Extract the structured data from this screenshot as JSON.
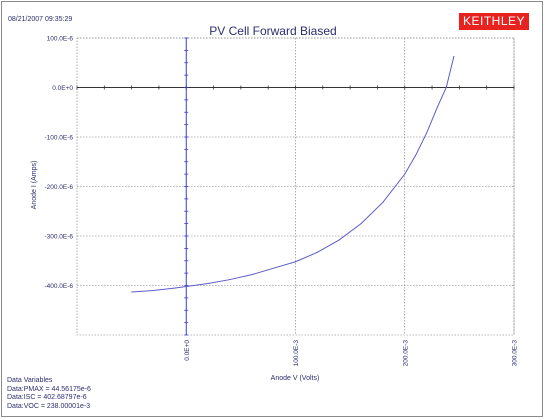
{
  "header": {
    "timestamp": "08/21/2007 09:35:29",
    "logo_text": "KEITHLEY",
    "logo_color": "#e8231f"
  },
  "chart_data": {
    "type": "line",
    "title": "PV Cell Forward Biased",
    "xlabel": "Anode V (Volts)",
    "ylabel": "Anode I (Amps)",
    "xlim": [
      -0.1,
      0.3
    ],
    "ylim": [
      -0.0005,
      0.0001
    ],
    "x_ticks": [
      0,
      0.1,
      0.2,
      0.3
    ],
    "x_tick_labels": [
      "0.0E+0",
      "100.0E-3",
      "200.0E-3",
      "300.0E-3"
    ],
    "y_ticks": [
      0.0001,
      0,
      -0.0001,
      -0.0002,
      -0.0003,
      -0.0004
    ],
    "y_tick_labels": [
      "100.0E-6",
      "0.0E+0",
      "-100.0E-6",
      "-200.0E-6",
      "-300.0E-6",
      "-400.0E-6"
    ],
    "grid": true,
    "line_color": "#5c5cc8",
    "series": [
      {
        "x": [
          -0.05,
          -0.03,
          -0.01,
          0.0,
          0.02,
          0.04,
          0.06,
          0.08,
          0.1,
          0.12,
          0.14,
          0.16,
          0.18,
          0.2,
          0.21,
          0.22,
          0.23,
          0.238,
          0.245
        ],
        "y": [
          -0.000413,
          -0.00041,
          -0.000405,
          -0.000402,
          -0.000396,
          -0.000388,
          -0.000378,
          -0.000365,
          -0.000352,
          -0.000333,
          -0.000308,
          -0.000275,
          -0.000232,
          -0.000175,
          -0.000137,
          -9.2e-05,
          -3.9e-05,
          0.0,
          6.3e-05
        ]
      }
    ]
  },
  "data_variables": {
    "heading": "Data Variables",
    "pmax": "Data:PMAX = 44.56175e-6",
    "isc": "Data:ISC = 402.68797e-6",
    "voc": "Data:VOC = 238.00001e-3"
  }
}
